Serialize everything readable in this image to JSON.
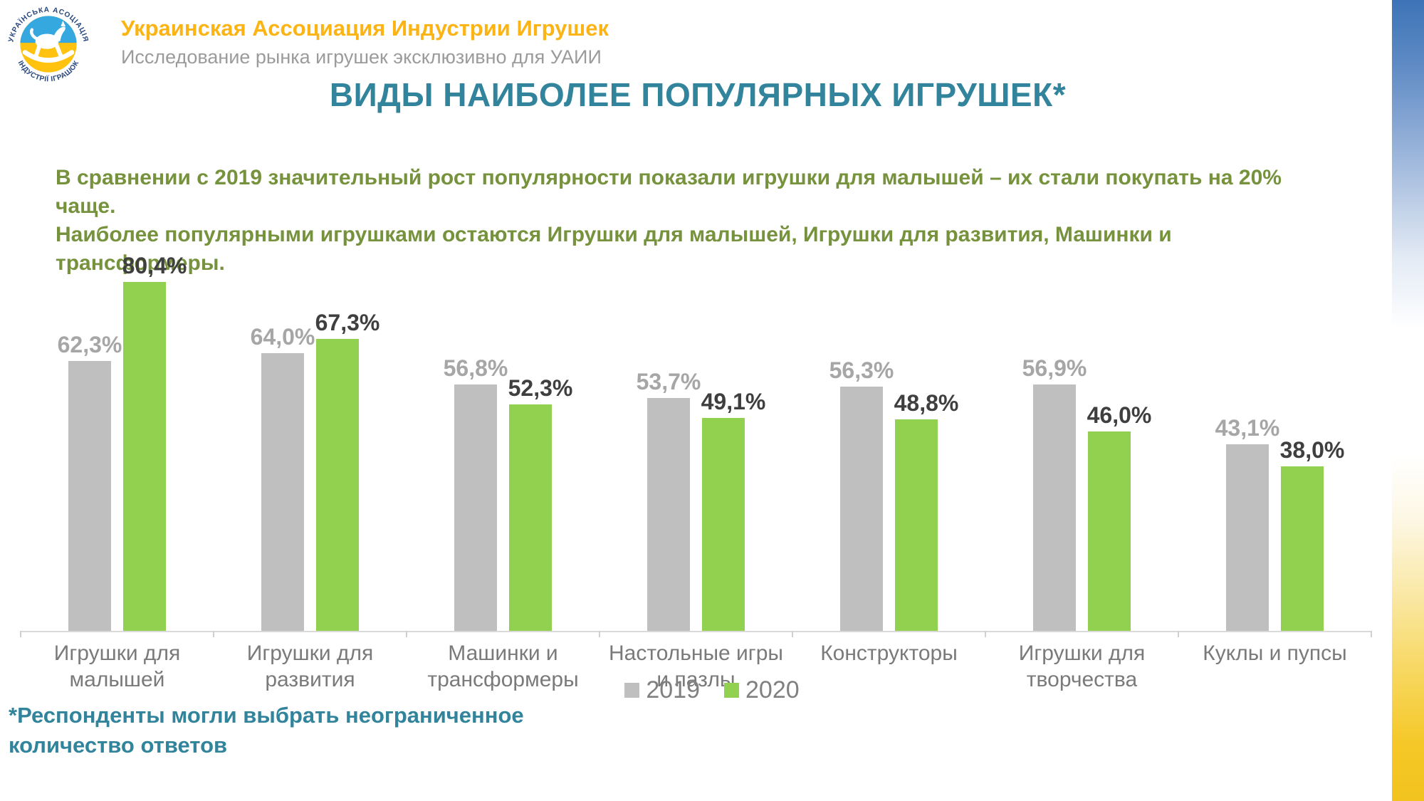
{
  "header": {
    "logo": {
      "top_text": "УКРАЇНСЬКА АСОЦІАЦІЯ",
      "bottom_text": "ІНДУСТРІЇ ІГРАШОК",
      "blue": "#35A8E0",
      "yellow": "#FFC20E"
    },
    "title": "Украинская Ассоциация Индустрии Игрушек",
    "subtitle": "Исследование рынка игрушек эксклюзивно для УАИИ"
  },
  "slide": {
    "title": "ВИДЫ НАИБОЛЕЕ ПОПУЛЯРНЫХ ИГРУШЕК*",
    "lead_line1": "В сравнении с 2019 значительный рост популярности показали игрушки для малышей – их стали покупать на 20% чаще.",
    "lead_line2": "Наиболее популярными игрушками остаются Игрушки для малышей, Игрушки для развития, Машинки и трансформеры.",
    "footnote": "*Респонденты могли выбрать неограниченное количество ответов"
  },
  "chart_data": {
    "type": "bar",
    "title": "ВИДЫ НАИБОЛЕЕ ПОПУЛЯРНЫХ ИГРУШЕК*",
    "categories": [
      "Игрушки для\nмалышей",
      "Игрушки для\nразвития",
      "Машинки и\nтрансформеры",
      "Настольные игры\nи пазлы",
      "Конструкторы",
      "Игрушки для\nтворчества",
      "Куклы и пупсы"
    ],
    "series": [
      {
        "name": "2019",
        "color": "#BFBFBF",
        "label_color": "#A6A6A6",
        "values": [
          62.3,
          64.0,
          56.8,
          53.7,
          56.3,
          56.9,
          43.1
        ],
        "labels": [
          "62,3%",
          "64,0%",
          "56,8%",
          "53,7%",
          "56,3%",
          "56,9%",
          "43,1%"
        ]
      },
      {
        "name": "2020",
        "color": "#92D050",
        "label_color": "#3F3F3F",
        "values": [
          80.4,
          67.3,
          52.3,
          49.1,
          48.8,
          46.0,
          38.0
        ],
        "labels": [
          "80,4%",
          "67,3%",
          "52,3%",
          "49,1%",
          "48,8%",
          "46,0%",
          "38,0%"
        ]
      }
    ],
    "xlabel": "",
    "ylabel": "",
    "ylim": [
      0,
      90
    ],
    "grid": false,
    "legend_position": "bottom-center",
    "axis_color": "#D9D9D9"
  },
  "colors": {
    "accent_teal": "#31849B",
    "accent_green_text": "#76923C",
    "org_orange": "#FBB414",
    "band_blue": "#3D74B7",
    "band_yellow": "#F2C31E"
  }
}
